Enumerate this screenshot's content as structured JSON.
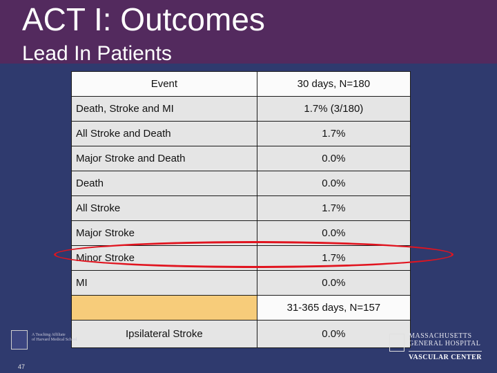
{
  "slide": {
    "title": "ACT I: Outcomes",
    "subtitle": "Lead In Patients",
    "page_number": "47"
  },
  "table": {
    "header": {
      "event": "Event",
      "period1": "30 days, N=180"
    },
    "rows": [
      {
        "event": "Death, Stroke and MI",
        "value": "1.7% (3/180)"
      },
      {
        "event": "All Stroke and Death",
        "value": "1.7%"
      },
      {
        "event": "Major Stroke and Death",
        "value": "0.0%"
      },
      {
        "event": "Death",
        "value": "0.0%"
      },
      {
        "event": "All Stroke",
        "value": "1.7%"
      },
      {
        "event": "Major Stroke",
        "value": "0.0%"
      },
      {
        "event": "Minor Stroke",
        "value": "1.7%"
      },
      {
        "event": "MI",
        "value": "0.0%"
      }
    ],
    "section2": {
      "period": "31-365 days, N=157"
    },
    "section2_row": {
      "event": "Ipsilateral Stroke",
      "value": "0.0%"
    }
  },
  "logos": {
    "left": {
      "line1": "A Teaching Affiliate",
      "line2": "of Harvard Medical School"
    },
    "right": {
      "line1": "MASSACHUSETTS",
      "line2": "GENERAL HOSPITAL",
      "line3": "VASCULAR CENTER"
    }
  },
  "colors": {
    "background": "#2f3a6e",
    "title_band": "#532a5e",
    "highlight_ellipse": "#e1141f",
    "section_cell": "#f7cc7a"
  }
}
